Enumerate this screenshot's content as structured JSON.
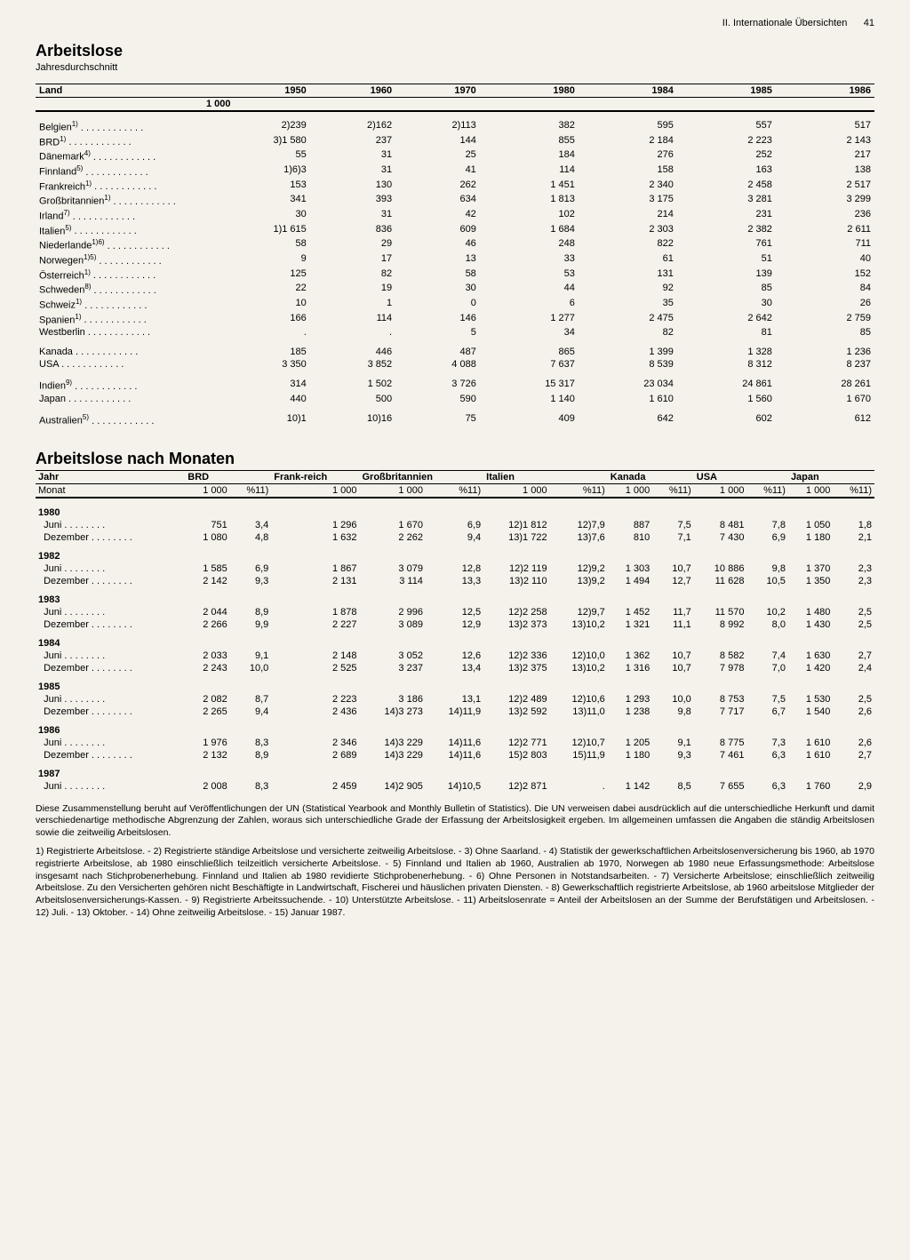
{
  "header": {
    "section": "II. Internationale Übersichten",
    "page": "41"
  },
  "table1": {
    "title": "Arbeitslose",
    "subtitle": "Jahresdurchschnitt",
    "col_label": "Land",
    "unit": "1 000",
    "years": [
      "1950",
      "1960",
      "1970",
      "1980",
      "1984",
      "1985",
      "1986"
    ],
    "groups": [
      {
        "rows": [
          {
            "name": "Belgien",
            "sup": "1)",
            "v": [
              "2)239",
              "2)162",
              "2)113",
              "382",
              "595",
              "557",
              "517"
            ]
          },
          {
            "name": "BRD",
            "sup": "1)",
            "v": [
              "3)1 580",
              "237",
              "144",
              "855",
              "2 184",
              "2 223",
              "2 143"
            ]
          },
          {
            "name": "Dänemark",
            "sup": "4)",
            "v": [
              "55",
              "31",
              "25",
              "184",
              "276",
              "252",
              "217"
            ]
          },
          {
            "name": "Finnland",
            "sup": "5)",
            "v": [
              "1)6)3",
              "31",
              "41",
              "114",
              "158",
              "163",
              "138"
            ]
          },
          {
            "name": "Frankreich",
            "sup": "1)",
            "v": [
              "153",
              "130",
              "262",
              "1 451",
              "2 340",
              "2 458",
              "2 517"
            ]
          },
          {
            "name": "Großbritannien",
            "sup": "1)",
            "v": [
              "341",
              "393",
              "634",
              "1 813",
              "3 175",
              "3 281",
              "3 299"
            ]
          },
          {
            "name": "Irland",
            "sup": "7)",
            "v": [
              "30",
              "31",
              "42",
              "102",
              "214",
              "231",
              "236"
            ]
          },
          {
            "name": "Italien",
            "sup": "5)",
            "v": [
              "1)1 615",
              "836",
              "609",
              "1 684",
              "2 303",
              "2 382",
              "2 611"
            ]
          },
          {
            "name": "Niederlande",
            "sup": "1)6)",
            "v": [
              "58",
              "29",
              "46",
              "248",
              "822",
              "761",
              "711"
            ]
          },
          {
            "name": "Norwegen",
            "sup": "1)5)",
            "v": [
              "9",
              "17",
              "13",
              "33",
              "61",
              "51",
              "40"
            ]
          },
          {
            "name": "Österreich",
            "sup": "1)",
            "v": [
              "125",
              "82",
              "58",
              "53",
              "131",
              "139",
              "152"
            ]
          },
          {
            "name": "Schweden",
            "sup": "8)",
            "v": [
              "22",
              "19",
              "30",
              "44",
              "92",
              "85",
              "84"
            ]
          },
          {
            "name": "Schweiz",
            "sup": "1)",
            "v": [
              "10",
              "1",
              "0",
              "6",
              "35",
              "30",
              "26"
            ]
          },
          {
            "name": "Spanien",
            "sup": "1)",
            "v": [
              "166",
              "114",
              "146",
              "1 277",
              "2 475",
              "2 642",
              "2 759"
            ]
          },
          {
            "name": "Westberlin",
            "sup": "",
            "v": [
              ".",
              ".",
              "5",
              "34",
              "82",
              "81",
              "85"
            ]
          }
        ]
      },
      {
        "rows": [
          {
            "name": "Kanada",
            "sup": "",
            "v": [
              "185",
              "446",
              "487",
              "865",
              "1 399",
              "1 328",
              "1 236"
            ]
          },
          {
            "name": "USA",
            "sup": "",
            "v": [
              "3 350",
              "3 852",
              "4 088",
              "7 637",
              "8 539",
              "8 312",
              "8 237"
            ]
          }
        ]
      },
      {
        "rows": [
          {
            "name": "Indien",
            "sup": "9)",
            "v": [
              "314",
              "1 502",
              "3 726",
              "15 317",
              "23 034",
              "24 861",
              "28 261"
            ]
          },
          {
            "name": "Japan",
            "sup": "",
            "v": [
              "440",
              "500",
              "590",
              "1 140",
              "1 610",
              "1 560",
              "1 670"
            ]
          }
        ]
      },
      {
        "rows": [
          {
            "name": "Australien",
            "sup": "5)",
            "v": [
              "10)1",
              "10)16",
              "75",
              "409",
              "642",
              "602",
              "612"
            ]
          }
        ]
      }
    ]
  },
  "table2": {
    "title": "Arbeitslose nach Monaten",
    "row_label1": "Jahr",
    "row_label2": "Monat",
    "countries": [
      "BRD",
      "Frank-\nreich",
      "Großbritannien",
      "Italien",
      "Kanada",
      "USA",
      "Japan"
    ],
    "sub_1000": "1 000",
    "sub_pct": "%11)",
    "years": [
      {
        "y": "1980",
        "months": [
          {
            "m": "Juni",
            "v": [
              "751",
              "3,4",
              "1 296",
              "1 670",
              "6,9",
              "12)1 812",
              "12)7,9",
              "887",
              "7,5",
              "8 481",
              "7,8",
              "1 050",
              "1,8"
            ]
          },
          {
            "m": "Dezember",
            "v": [
              "1 080",
              "4,8",
              "1 632",
              "2 262",
              "9,4",
              "13)1 722",
              "13)7,6",
              "810",
              "7,1",
              "7 430",
              "6,9",
              "1 180",
              "2,1"
            ]
          }
        ]
      },
      {
        "y": "1982",
        "months": [
          {
            "m": "Juni",
            "v": [
              "1 585",
              "6,9",
              "1 867",
              "3 079",
              "12,8",
              "12)2 119",
              "12)9,2",
              "1 303",
              "10,7",
              "10 886",
              "9,8",
              "1 370",
              "2,3"
            ]
          },
          {
            "m": "Dezember",
            "v": [
              "2 142",
              "9,3",
              "2 131",
              "3 114",
              "13,3",
              "13)2 110",
              "13)9,2",
              "1 494",
              "12,7",
              "11 628",
              "10,5",
              "1 350",
              "2,3"
            ]
          }
        ]
      },
      {
        "y": "1983",
        "months": [
          {
            "m": "Juni",
            "v": [
              "2 044",
              "8,9",
              "1 878",
              "2 996",
              "12,5",
              "12)2 258",
              "12)9,7",
              "1 452",
              "11,7",
              "11 570",
              "10,2",
              "1 480",
              "2,5"
            ]
          },
          {
            "m": "Dezember",
            "v": [
              "2 266",
              "9,9",
              "2 227",
              "3 089",
              "12,9",
              "13)2 373",
              "13)10,2",
              "1 321",
              "11,1",
              "8 992",
              "8,0",
              "1 430",
              "2,5"
            ]
          }
        ]
      },
      {
        "y": "1984",
        "months": [
          {
            "m": "Juni",
            "v": [
              "2 033",
              "9,1",
              "2 148",
              "3 052",
              "12,6",
              "12)2 336",
              "12)10,0",
              "1 362",
              "10,7",
              "8 582",
              "7,4",
              "1 630",
              "2,7"
            ]
          },
          {
            "m": "Dezember",
            "v": [
              "2 243",
              "10,0",
              "2 525",
              "3 237",
              "13,4",
              "13)2 375",
              "13)10,2",
              "1 316",
              "10,7",
              "7 978",
              "7,0",
              "1 420",
              "2,4"
            ]
          }
        ]
      },
      {
        "y": "1985",
        "months": [
          {
            "m": "Juni",
            "v": [
              "2 082",
              "8,7",
              "2 223",
              "3 186",
              "13,1",
              "12)2 489",
              "12)10,6",
              "1 293",
              "10,0",
              "8 753",
              "7,5",
              "1 530",
              "2,5"
            ]
          },
          {
            "m": "Dezember",
            "v": [
              "2 265",
              "9,4",
              "2 436",
              "14)3 273",
              "14)11,9",
              "13)2 592",
              "13)11,0",
              "1 238",
              "9,8",
              "7 717",
              "6,7",
              "1 540",
              "2,6"
            ]
          }
        ]
      },
      {
        "y": "1986",
        "months": [
          {
            "m": "Juni",
            "v": [
              "1 976",
              "8,3",
              "2 346",
              "14)3 229",
              "14)11,6",
              "12)2 771",
              "12)10,7",
              "1 205",
              "9,1",
              "8 775",
              "7,3",
              "1 610",
              "2,6"
            ]
          },
          {
            "m": "Dezember",
            "v": [
              "2 132",
              "8,9",
              "2 689",
              "14)3 229",
              "14)11,6",
              "15)2 803",
              "15)11,9",
              "1 180",
              "9,3",
              "7 461",
              "6,3",
              "1 610",
              "2,7"
            ]
          }
        ]
      },
      {
        "y": "1987",
        "months": [
          {
            "m": "Juni",
            "v": [
              "2 008",
              "8,3",
              "2 459",
              "14)2 905",
              "14)10,5",
              "12)2 871",
              ".",
              "1 142",
              "8,5",
              "7 655",
              "6,3",
              "1 760",
              "2,9"
            ]
          }
        ]
      }
    ]
  },
  "notes": {
    "p1": "Diese Zusammenstellung beruht auf Veröffentlichungen der UN (Statistical Yearbook and Monthly Bulletin of Statistics). Die UN verweisen dabei ausdrücklich auf die unterschiedliche Herkunft und damit verschiedenartige methodische Abgrenzung der Zahlen, woraus sich unterschiedliche Grade der Erfassung der Arbeitslosigkeit ergeben. Im allgemeinen umfassen die Angaben die ständig Arbeitslosen sowie die zeitweilig Arbeitslosen.",
    "p2": "1) Registrierte Arbeitslose. - 2) Registrierte ständige Arbeitslose und versicherte zeitweilig Arbeitslose. - 3) Ohne Saarland. - 4) Statistik der gewerkschaftlichen Arbeitslosenversicherung bis 1960, ab 1970 registrierte Arbeitslose, ab 1980 einschließlich teilzeitlich versicherte Arbeitslose. - 5) Finnland und Italien ab 1960, Australien ab 1970, Norwegen ab 1980 neue Erfassungsmethode: Arbeitslose insgesamt nach Stichprobenerhebung. Finnland und Italien ab 1980 revidierte Stichprobenerhebung. - 6) Ohne Personen in Notstandsarbeiten. - 7) Versicherte Arbeitslose; einschließlich zeitweilig Arbeitslose. Zu den Versicherten gehören nicht Beschäftigte in Landwirtschaft, Fischerei und häuslichen privaten Diensten. - 8) Gewerkschaftlich registrierte Arbeitslose, ab 1960 arbeitslose Mitglieder der Arbeitslosenversicherungs-Kassen. - 9) Registrierte Arbeitssuchende. - 10) Unterstützte Arbeitslose. - 11) Arbeitslosenrate = Anteil der Arbeitslosen an der Summe der Berufstätigen und Arbeitslosen. - 12) Juli. - 13) Oktober. - 14) Ohne zeitweilig Arbeitslose. - 15) Januar 1987."
  }
}
